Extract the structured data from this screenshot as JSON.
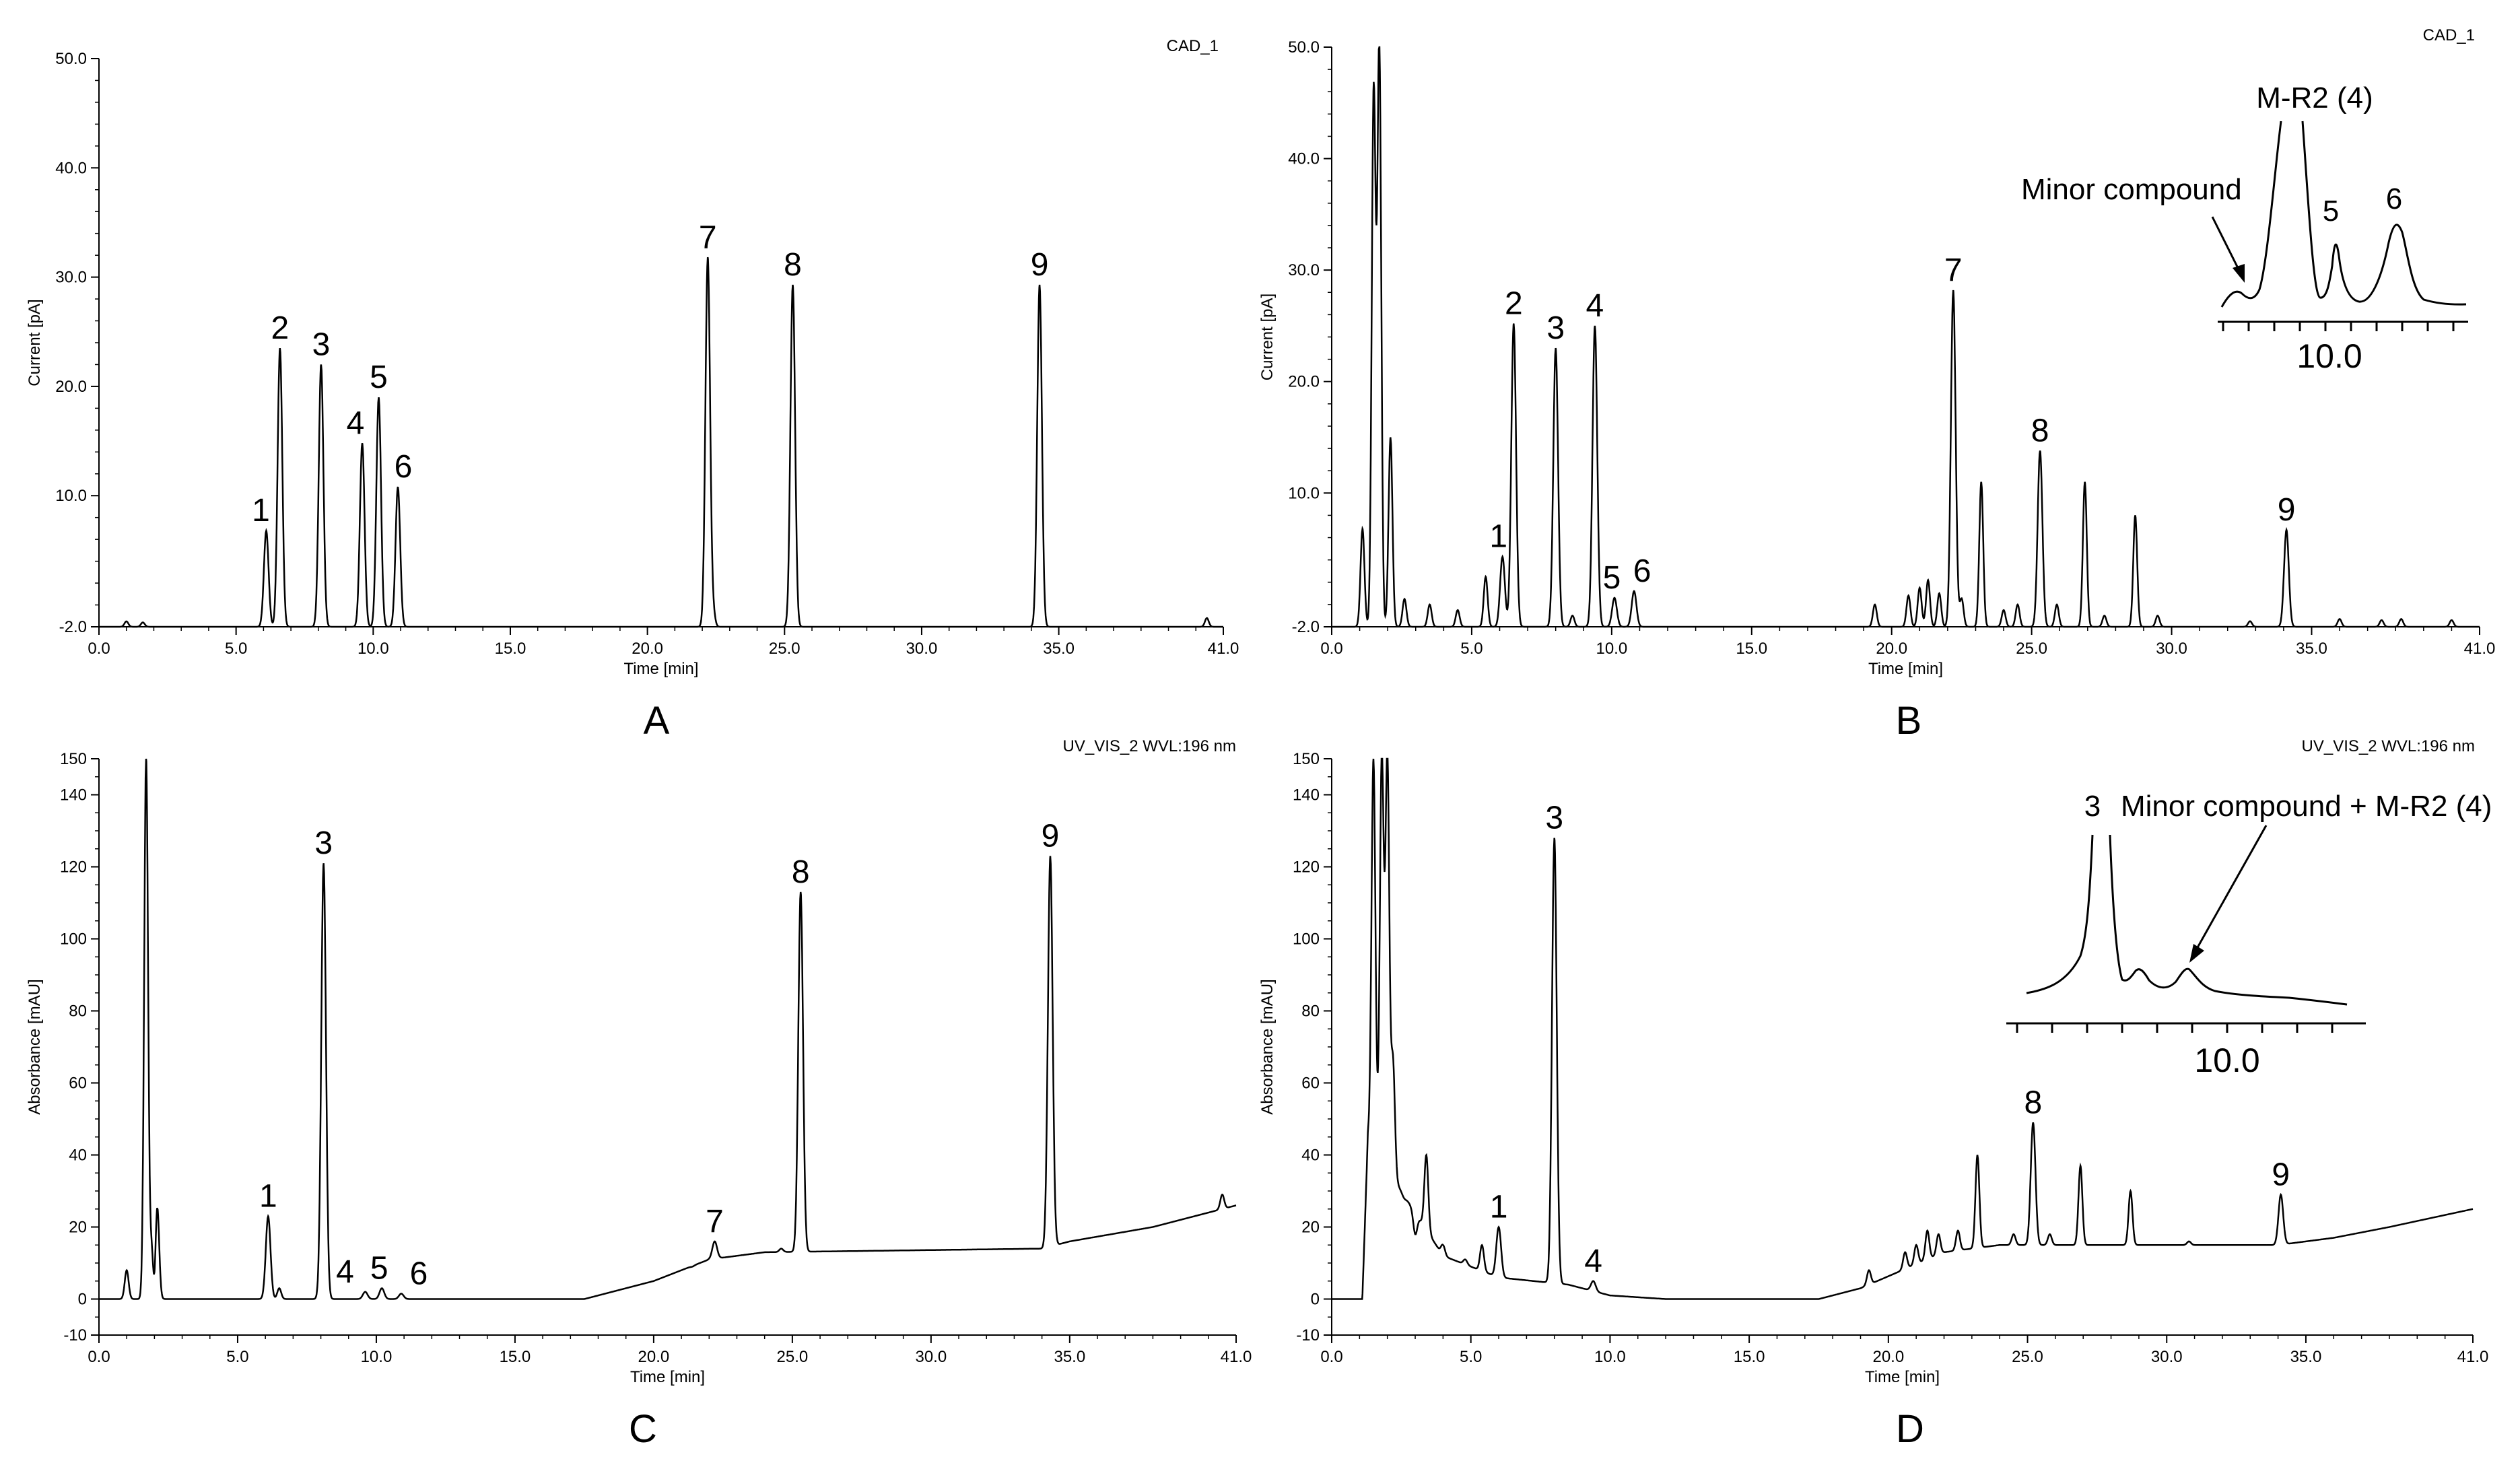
{
  "figure": {
    "colors": {
      "trace": "#000000",
      "background": "#ffffff"
    },
    "panels_meta": [
      {
        "letter": "A",
        "detector": "CAD_1"
      },
      {
        "letter": "B",
        "detector": "CAD_1"
      },
      {
        "letter": "C",
        "detector": "UV_VIS_2 WVL:196 nm"
      },
      {
        "letter": "D",
        "detector": "UV_VIS_2 WVL:196 nm"
      }
    ]
  },
  "chart_data": [
    {
      "panel": "A",
      "type": "line",
      "detector": "CAD_1",
      "xlabel": "Time [min]",
      "ylabel": "Current [pA]",
      "xlim": [
        0,
        41
      ],
      "ylim": [
        -2,
        50
      ],
      "xticks": [
        "0.0",
        "5.0",
        "10.0",
        "15.0",
        "20.0",
        "25.0",
        "30.0",
        "35.0",
        "41.0"
      ],
      "yticks": [
        "-2.0",
        "10.0",
        "20.0",
        "30.0",
        "40.0",
        "50.0"
      ],
      "baseline": -2.0,
      "peaks": [
        {
          "label": "1",
          "t": 6.1,
          "h": 6.8
        },
        {
          "label": "2",
          "t": 6.6,
          "h": 23.5
        },
        {
          "label": "3",
          "t": 8.1,
          "h": 22.0
        },
        {
          "label": "4",
          "t": 9.6,
          "h": 14.8
        },
        {
          "label": "5",
          "t": 10.2,
          "h": 19.0
        },
        {
          "label": "6",
          "t": 10.9,
          "h": 10.8
        },
        {
          "label": "7",
          "t": 22.2,
          "h": 31.8
        },
        {
          "label": "8",
          "t": 25.3,
          "h": 29.3
        },
        {
          "label": "9",
          "t": 34.3,
          "h": 29.3
        }
      ],
      "minor_peaks": [
        {
          "t": 1.0,
          "h": -1.5
        },
        {
          "t": 1.6,
          "h": -1.6
        },
        {
          "t": 22.4,
          "h": -0.8
        },
        {
          "t": 40.4,
          "h": -1.2
        }
      ]
    },
    {
      "panel": "B",
      "type": "line",
      "detector": "CAD_1",
      "xlabel": "Time [min]",
      "ylabel": "Current [pA]",
      "xlim": [
        0,
        41
      ],
      "ylim": [
        -2,
        50
      ],
      "xticks": [
        "0.0",
        "5.0",
        "10.0",
        "15.0",
        "20.0",
        "25.0",
        "30.0",
        "35.0",
        "41.0"
      ],
      "yticks": [
        "-2.0",
        "10.0",
        "20.0",
        "30.0",
        "40.0",
        "50.0"
      ],
      "baseline": -2.0,
      "peaks": [
        {
          "label": "1",
          "t": 6.1,
          "h": 4.3
        },
        {
          "label": "2",
          "t": 6.5,
          "h": 25.2
        },
        {
          "label": "3",
          "t": 8.0,
          "h": 23.0
        },
        {
          "label": "4",
          "t": 9.4,
          "h": 25.0
        },
        {
          "label": "5",
          "t": 10.1,
          "h": 0.6
        },
        {
          "label": "6",
          "t": 10.8,
          "h": 1.2
        },
        {
          "label": "7",
          "t": 22.2,
          "h": 28.2
        },
        {
          "label": "8",
          "t": 25.3,
          "h": 13.8
        },
        {
          "label": "9",
          "t": 34.1,
          "h": 6.7
        }
      ],
      "minor_peaks": [
        {
          "t": 1.1,
          "h": 6.8
        },
        {
          "t": 1.5,
          "h": 46.0
        },
        {
          "t": 1.7,
          "h": 50.0
        },
        {
          "t": 2.1,
          "h": 15.0
        },
        {
          "t": 2.6,
          "h": 0.5
        },
        {
          "t": 3.5,
          "h": 0.0
        },
        {
          "t": 4.5,
          "h": -0.5
        },
        {
          "t": 5.5,
          "h": 2.5
        },
        {
          "t": 8.6,
          "h": -1.0
        },
        {
          "t": 19.4,
          "h": 0.0
        },
        {
          "t": 20.6,
          "h": 0.8
        },
        {
          "t": 21.0,
          "h": 1.5
        },
        {
          "t": 21.3,
          "h": 2.2
        },
        {
          "t": 21.7,
          "h": 1.0
        },
        {
          "t": 22.5,
          "h": 0.5
        },
        {
          "t": 23.2,
          "h": 11.0
        },
        {
          "t": 24.0,
          "h": -0.5
        },
        {
          "t": 24.5,
          "h": 0.0
        },
        {
          "t": 25.9,
          "h": 0.0
        },
        {
          "t": 26.9,
          "h": 11.0
        },
        {
          "t": 27.6,
          "h": -1.0
        },
        {
          "t": 28.7,
          "h": 8.0
        },
        {
          "t": 29.5,
          "h": -1.0
        },
        {
          "t": 32.8,
          "h": -1.5
        },
        {
          "t": 36.0,
          "h": -1.3
        },
        {
          "t": 37.5,
          "h": -1.4
        },
        {
          "t": 38.2,
          "h": -1.3
        },
        {
          "t": 40.0,
          "h": -1.4
        }
      ],
      "inset": {
        "title": "M-R2 (4)",
        "annotation": "Minor compound",
        "peak_5": "5",
        "peak_6": "6",
        "tick_label": "10.0"
      }
    },
    {
      "panel": "C",
      "type": "line",
      "detector": "UV_VIS_2 WVL:196 nm",
      "xlabel": "Time [min]",
      "ylabel": "Absorbance [mAU]",
      "xlim": [
        0,
        41
      ],
      "ylim": [
        -10,
        150
      ],
      "xticks": [
        "0.0",
        "5.0",
        "10.0",
        "15.0",
        "20.0",
        "25.0",
        "30.0",
        "35.0",
        "41.0"
      ],
      "yticks": [
        "-10",
        "0",
        "20",
        "40",
        "60",
        "80",
        "100",
        "120",
        "140",
        "150"
      ],
      "baseline_points": [
        [
          0,
          0
        ],
        [
          17.5,
          0
        ],
        [
          20,
          5
        ],
        [
          22,
          11
        ],
        [
          24,
          13
        ],
        [
          34,
          14
        ],
        [
          35,
          16
        ],
        [
          38,
          20
        ],
        [
          40,
          24
        ],
        [
          41,
          26
        ]
      ],
      "peaks": [
        {
          "label": "1",
          "t": 6.1,
          "h": 23
        },
        {
          "label": "3",
          "t": 8.1,
          "h": 121
        },
        {
          "label": "4",
          "t": 9.6,
          "h": 2
        },
        {
          "label": "5",
          "t": 10.2,
          "h": 3
        },
        {
          "label": "6",
          "t": 10.9,
          "h": 1.5
        },
        {
          "label": "7",
          "t": 22.2,
          "h": 16
        },
        {
          "label": "8",
          "t": 25.3,
          "h": 113
        },
        {
          "label": "9",
          "t": 34.3,
          "h": 123
        }
      ],
      "minor_peaks": [
        {
          "t": 1.0,
          "h": 8
        },
        {
          "t": 1.7,
          "h": 150
        },
        {
          "t": 1.9,
          "h": 14
        },
        {
          "t": 2.1,
          "h": 26
        },
        {
          "t": 6.5,
          "h": 3
        },
        {
          "t": 21.4,
          "h": 9
        },
        {
          "t": 24.6,
          "h": 14
        },
        {
          "t": 40.5,
          "h": 29
        }
      ],
      "dips": [
        {
          "t": 2.0,
          "h": -7
        }
      ]
    },
    {
      "panel": "D",
      "type": "line",
      "detector": "UV_VIS_2 WVL:196 nm",
      "xlabel": "Time [min]",
      "ylabel": "Absorbance [mAU]",
      "xlim": [
        0,
        41
      ],
      "ylim": [
        -10,
        150
      ],
      "xticks": [
        "0.0",
        "5.0",
        "10.0",
        "15.0",
        "20.0",
        "25.0",
        "30.0",
        "35.0",
        "41.0"
      ],
      "yticks": [
        "-10",
        "0",
        "20",
        "40",
        "60",
        "80",
        "100",
        "120",
        "140",
        "150"
      ],
      "baseline_points": [
        [
          0,
          0
        ],
        [
          1.1,
          0
        ],
        [
          1.3,
          45
        ],
        [
          2.5,
          30
        ],
        [
          4,
          12
        ],
        [
          6,
          6
        ],
        [
          8.5,
          4
        ],
        [
          10,
          1
        ],
        [
          12,
          0
        ],
        [
          17.5,
          0
        ],
        [
          19,
          3
        ],
        [
          20.5,
          8
        ],
        [
          22,
          13
        ],
        [
          24,
          15
        ],
        [
          34,
          15
        ],
        [
          36,
          17
        ],
        [
          38,
          20
        ],
        [
          41,
          25
        ]
      ],
      "peaks": [
        {
          "label": "1",
          "t": 6.0,
          "h": 20
        },
        {
          "label": "3",
          "t": 8.0,
          "h": 128
        },
        {
          "label": "4",
          "t": 9.4,
          "h": 5
        },
        {
          "label": "8",
          "t": 25.2,
          "h": 49
        },
        {
          "label": "9",
          "t": 34.1,
          "h": 29
        }
      ],
      "minor_peaks": [
        {
          "t": 1.5,
          "h": 150
        },
        {
          "t": 1.8,
          "h": 150
        },
        {
          "t": 2.0,
          "h": 150
        },
        {
          "t": 2.2,
          "h": 66
        },
        {
          "t": 2.6,
          "h": 28
        },
        {
          "t": 3.0,
          "h": 18
        },
        {
          "t": 3.4,
          "h": 40
        },
        {
          "t": 4.0,
          "h": 15
        },
        {
          "t": 4.8,
          "h": 11
        },
        {
          "t": 5.4,
          "h": 15
        },
        {
          "t": 19.3,
          "h": 8
        },
        {
          "t": 20.6,
          "h": 13
        },
        {
          "t": 21.0,
          "h": 15
        },
        {
          "t": 21.4,
          "h": 19
        },
        {
          "t": 21.8,
          "h": 18
        },
        {
          "t": 22.5,
          "h": 19
        },
        {
          "t": 23.2,
          "h": 40
        },
        {
          "t": 24.5,
          "h": 18
        },
        {
          "t": 25.8,
          "h": 18
        },
        {
          "t": 26.9,
          "h": 37
        },
        {
          "t": 28.7,
          "h": 30
        },
        {
          "t": 30.8,
          "h": 16
        },
        {
          "t": 33.0,
          "h": 15
        }
      ],
      "inset": {
        "peak_3": "3",
        "annotation": "Minor compound + M-R2 (4)",
        "tick_label": "10.0"
      }
    }
  ]
}
